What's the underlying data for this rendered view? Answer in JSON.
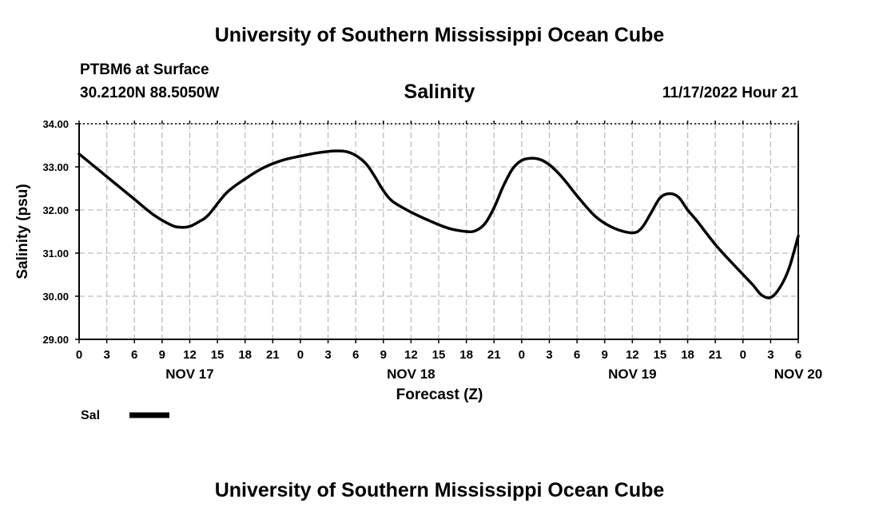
{
  "header": {
    "title": "University of Southern Mississippi Ocean Cube",
    "station": "PTBM6 at Surface",
    "location": "30.2120N  88.5050W",
    "forecast_time": "11/17/2022 Hour 21"
  },
  "footer": {
    "title": "University of Southern Mississippi Ocean Cube"
  },
  "legend": {
    "label": "Sal"
  },
  "chart_data": {
    "type": "line",
    "title": "Salinity",
    "xlabel": "Forecast (Z)",
    "ylabel": "Salinity (psu)",
    "ylim": [
      29,
      34
    ],
    "xlim": [
      0,
      78
    ],
    "x_unit": "hours from NOV 17 00Z",
    "yticks": [
      {
        "v": 29,
        "label": "29.00"
      },
      {
        "v": 30,
        "label": "30.00"
      },
      {
        "v": 31,
        "label": "31.00"
      },
      {
        "v": 32,
        "label": "32.00"
      },
      {
        "v": 33,
        "label": "33.00"
      },
      {
        "v": 34,
        "label": "34.00"
      }
    ],
    "xticks": [
      {
        "h": 0,
        "label": "0"
      },
      {
        "h": 3,
        "label": "3"
      },
      {
        "h": 6,
        "label": "6"
      },
      {
        "h": 9,
        "label": "9"
      },
      {
        "h": 12,
        "label": "12"
      },
      {
        "h": 15,
        "label": "15"
      },
      {
        "h": 18,
        "label": "18"
      },
      {
        "h": 21,
        "label": "21"
      },
      {
        "h": 24,
        "label": "0"
      },
      {
        "h": 27,
        "label": "3"
      },
      {
        "h": 30,
        "label": "6"
      },
      {
        "h": 33,
        "label": "9"
      },
      {
        "h": 36,
        "label": "12"
      },
      {
        "h": 39,
        "label": "15"
      },
      {
        "h": 42,
        "label": "18"
      },
      {
        "h": 45,
        "label": "21"
      },
      {
        "h": 48,
        "label": "0"
      },
      {
        "h": 51,
        "label": "3"
      },
      {
        "h": 54,
        "label": "6"
      },
      {
        "h": 57,
        "label": "9"
      },
      {
        "h": 60,
        "label": "12"
      },
      {
        "h": 63,
        "label": "15"
      },
      {
        "h": 66,
        "label": "18"
      },
      {
        "h": 69,
        "label": "21"
      },
      {
        "h": 72,
        "label": "0"
      },
      {
        "h": 75,
        "label": "3"
      },
      {
        "h": 78,
        "label": "6"
      }
    ],
    "day_labels": [
      {
        "h": 12,
        "label": "NOV 17"
      },
      {
        "h": 36,
        "label": "NOV 18"
      },
      {
        "h": 60,
        "label": "NOV 19"
      },
      {
        "h": 78,
        "label": "NOV 20"
      }
    ],
    "series": [
      {
        "name": "Sal",
        "color": "#000000",
        "x": [
          0,
          2,
          4,
          6,
          8,
          10,
          11,
          12,
          13,
          14,
          16,
          18,
          20,
          22,
          24,
          26,
          28,
          29.5,
          31,
          32,
          33,
          34,
          36,
          38,
          40,
          42,
          43,
          44,
          45,
          46,
          47,
          48,
          49,
          50,
          51,
          52,
          53,
          54,
          56,
          58,
          60,
          61,
          62,
          63,
          64,
          65,
          66,
          67,
          69,
          71,
          73,
          74,
          75,
          76,
          77,
          78
        ],
        "y": [
          33.3,
          32.95,
          32.6,
          32.25,
          31.9,
          31.65,
          31.6,
          31.62,
          31.73,
          31.88,
          32.4,
          32.72,
          32.98,
          33.15,
          33.25,
          33.33,
          33.37,
          33.32,
          33.1,
          32.8,
          32.45,
          32.2,
          31.95,
          31.75,
          31.58,
          31.5,
          31.52,
          31.68,
          32.05,
          32.55,
          32.95,
          33.15,
          33.2,
          33.17,
          33.05,
          32.85,
          32.6,
          32.33,
          31.85,
          31.58,
          31.47,
          31.58,
          31.92,
          32.28,
          32.38,
          32.3,
          32.0,
          31.75,
          31.2,
          30.73,
          30.28,
          30.03,
          29.97,
          30.2,
          30.65,
          31.4
        ]
      }
    ]
  }
}
